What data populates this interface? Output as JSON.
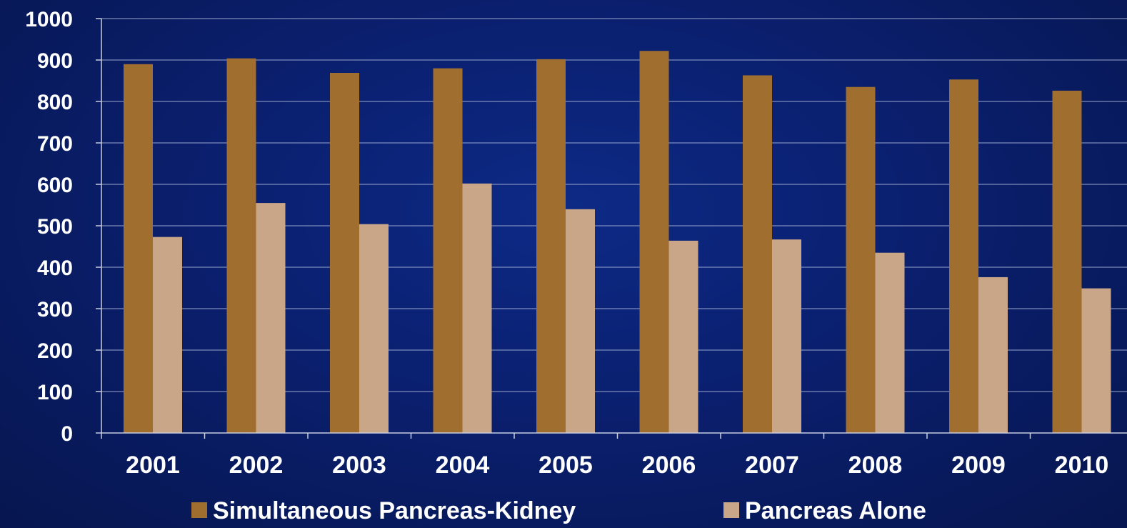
{
  "chart_data": {
    "type": "bar",
    "categories": [
      "2001",
      "2002",
      "2003",
      "2004",
      "2005",
      "2006",
      "2007",
      "2008",
      "2009",
      "2010"
    ],
    "series": [
      {
        "name": "Simultaneous Pancreas-Kidney",
        "color": "#a06e2e",
        "values": [
          890,
          904,
          869,
          880,
          902,
          922,
          863,
          835,
          853,
          826
        ]
      },
      {
        "name": "Pancreas Alone",
        "color": "#c8a687",
        "values": [
          473,
          555,
          504,
          602,
          540,
          464,
          467,
          435,
          376,
          349
        ]
      }
    ],
    "yticks": [
      "0",
      "100",
      "200",
      "300",
      "400",
      "500",
      "600",
      "700",
      "800",
      "900",
      "1000"
    ],
    "ylim": [
      0,
      1000
    ],
    "grid": true,
    "legend_position": "bottom",
    "title": "",
    "xlabel": "",
    "ylabel": ""
  }
}
